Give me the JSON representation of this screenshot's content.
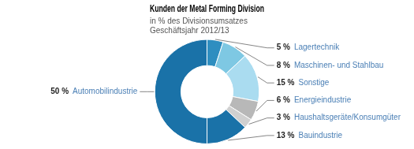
{
  "chart_data": {
    "type": "doughnut",
    "title": "Kunden der Metal Forming Division",
    "subtitle": [
      "in % des Divisionsumsatzes",
      "Geschäftsjahr 2012/13"
    ],
    "categories": [
      "Lagertechnik",
      "Maschinen- und Stahlbau",
      "Sonstige",
      "Energieindustrie",
      "Haushaltsgeräte/Konsumgüter",
      "Bauindustrie",
      "Automobilindustrie"
    ],
    "values": [
      5,
      8,
      15,
      6,
      3,
      13,
      50
    ],
    "value_labels": [
      "5 %",
      "8 %",
      "15 %",
      "6 %",
      "3 %",
      "13 %",
      "50 %"
    ],
    "colors": [
      "#2e8ec0",
      "#7ec8e3",
      "#aadcf0",
      "#b8b8b8",
      "#d0d0d0",
      "#1a72a8",
      "#1a72a8"
    ],
    "data_labels": true
  }
}
